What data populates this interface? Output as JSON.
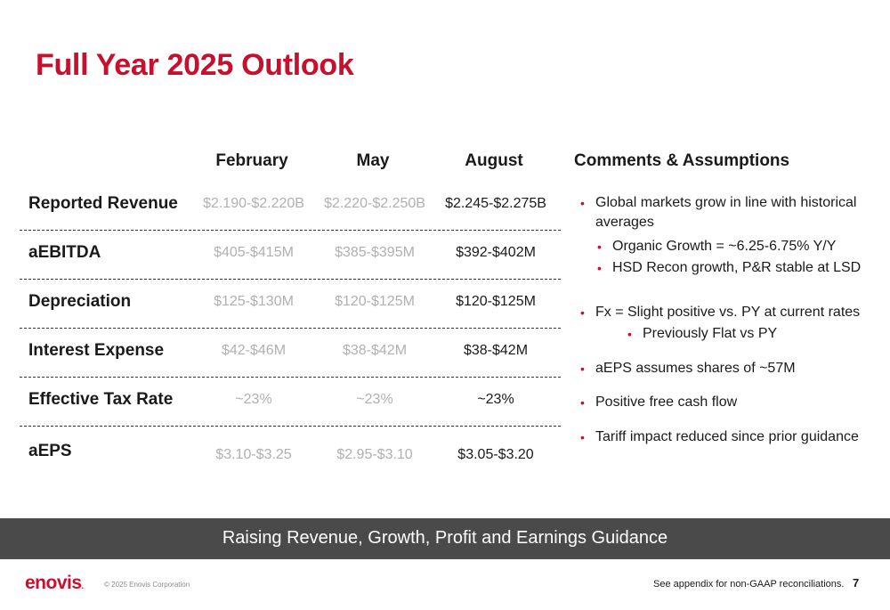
{
  "slide": {
    "title": "Full Year 2025 Outlook",
    "columns": [
      "February",
      "May",
      "August"
    ],
    "comments_title": "Comments & Assumptions",
    "rows": [
      {
        "label": "Reported Revenue",
        "values": [
          "$2.190-$2.220B",
          "$2.220-$2.250B",
          "$2.245-$2.275B"
        ]
      },
      {
        "label": "aEBITDA",
        "values": [
          "$405-$415M",
          "$385-$395M",
          "$392-$402M"
        ]
      },
      {
        "label": "Depreciation",
        "values": [
          "$125-$130M",
          "$120-$125M",
          "$120-$125M"
        ]
      },
      {
        "label": "Interest Expense",
        "values": [
          "$42-$46M",
          "$38-$42M",
          "$38-$42M"
        ]
      },
      {
        "label": "Effective Tax Rate",
        "values": [
          "~23%",
          "~23%",
          "~23%"
        ]
      },
      {
        "label": "aEPS",
        "values": [
          "$3.10-$3.25",
          "$2.95-$3.10",
          "$3.05-$3.20"
        ]
      }
    ],
    "comments": [
      "Global markets grow in line with historical averages",
      "Organic Growth = ~6.25-6.75% Y/Y",
      "HSD Recon growth, P&R stable at LSD",
      "Fx = Slight positive vs. PY at current rates",
      "Previously Flat vs PY",
      "aEPS assumes shares of ~57M",
      "Positive free cash flow",
      "Tariff impact reduced since prior guidance"
    ],
    "banner": "Raising Revenue, Growth, Profit and Earnings Guidance"
  },
  "footer": {
    "logo": "enovis",
    "logo_mark": ".",
    "copyright": "© 2025 Enovis Corporation",
    "note": "See appendix for non-GAAP reconciliations.",
    "page_number": "7"
  },
  "colors": {
    "brand_red": "#c8102e",
    "muted_text": "#b0b0b0",
    "banner_bg": "#4a4a4a"
  }
}
